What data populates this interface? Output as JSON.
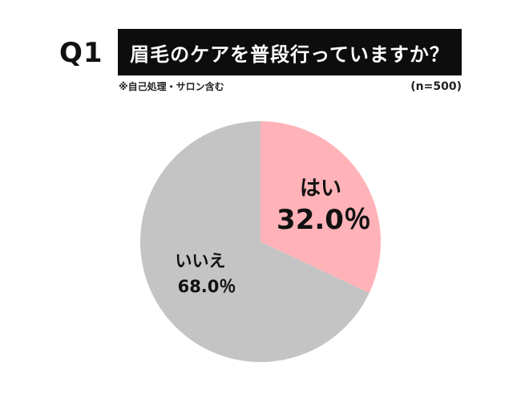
{
  "header": {
    "question_number": "Q1",
    "title": "眉毛のケアを普段行っていますか？",
    "note": "※自己処理・サロン含む",
    "sample_size": "(n=500)"
  },
  "chart_data": {
    "type": "pie",
    "title": "眉毛のケアを普段行っていますか？",
    "categories": [
      "はい",
      "いいえ"
    ],
    "values": [
      32.0,
      68.0
    ],
    "value_labels": [
      "32.0％",
      "68.0％"
    ],
    "colors": [
      "#ffb3b8",
      "#c4c4c4"
    ],
    "start": "12 o'clock, clockwise",
    "legend": "none (labels inside slices)"
  }
}
